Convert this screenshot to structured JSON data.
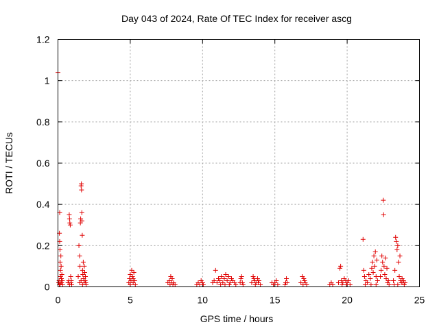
{
  "chart_data": {
    "type": "scatter",
    "title": "Day 043 of 2024, Rate Of TEC Index for receiver ascg",
    "xlabel": "GPS time / hours",
    "ylabel": "ROTI / TECUs",
    "xlim": [
      0,
      25
    ],
    "ylim": [
      0,
      1.2
    ],
    "xticks": [
      0,
      5,
      10,
      15,
      20,
      25
    ],
    "xtick_labels": [
      "0",
      "5",
      "10",
      "15",
      "20",
      "25"
    ],
    "yticks": [
      0,
      0.2,
      0.4,
      0.6,
      0.8,
      1,
      1.2
    ],
    "ytick_labels": [
      "0",
      "0.2",
      "0.4",
      "0.6",
      "0.8",
      "1",
      "1.2"
    ],
    "grid": true,
    "marker": "plus",
    "color": "#e00000",
    "series": [
      {
        "name": "ROTI",
        "points": [
          [
            0.0,
            1.04
          ],
          [
            0.05,
            0.02
          ],
          [
            0.08,
            0.03
          ],
          [
            0.1,
            0.26
          ],
          [
            0.12,
            0.22
          ],
          [
            0.12,
            0.36
          ],
          [
            0.14,
            0.18
          ],
          [
            0.15,
            0.12
          ],
          [
            0.17,
            0.08
          ],
          [
            0.18,
            0.05
          ],
          [
            0.2,
            0.15
          ],
          [
            0.22,
            0.1
          ],
          [
            0.24,
            0.04
          ],
          [
            0.25,
            0.02
          ],
          [
            0.27,
            0.06
          ],
          [
            0.3,
            0.03
          ],
          [
            0.32,
            0.01
          ],
          [
            0.15,
            0.01
          ],
          [
            0.2,
            0.02
          ],
          [
            0.1,
            0.01
          ],
          [
            0.7,
            0.02
          ],
          [
            0.75,
            0.03
          ],
          [
            0.78,
            0.35
          ],
          [
            0.8,
            0.33
          ],
          [
            0.82,
            0.31
          ],
          [
            0.85,
            0.3
          ],
          [
            0.88,
            0.05
          ],
          [
            0.9,
            0.02
          ],
          [
            0.92,
            0.03
          ],
          [
            0.95,
            0.01
          ],
          [
            0.8,
            0.01
          ],
          [
            1.4,
            0.05
          ],
          [
            1.45,
            0.2
          ],
          [
            1.5,
            0.15
          ],
          [
            1.52,
            0.1
          ],
          [
            1.55,
            0.31
          ],
          [
            1.57,
            0.33
          ],
          [
            1.6,
            0.49
          ],
          [
            1.62,
            0.5
          ],
          [
            1.63,
            0.47
          ],
          [
            1.65,
            0.36
          ],
          [
            1.66,
            0.32
          ],
          [
            1.68,
            0.25
          ],
          [
            1.7,
            0.08
          ],
          [
            1.72,
            0.06
          ],
          [
            1.75,
            0.12
          ],
          [
            1.78,
            0.04
          ],
          [
            1.8,
            0.02
          ],
          [
            1.82,
            0.1
          ],
          [
            1.85,
            0.07
          ],
          [
            1.88,
            0.03
          ],
          [
            1.9,
            0.05
          ],
          [
            1.92,
            0.02
          ],
          [
            1.95,
            0.01
          ],
          [
            1.5,
            0.02
          ],
          [
            1.6,
            0.03
          ],
          [
            1.7,
            0.01
          ],
          [
            4.9,
            0.02
          ],
          [
            4.95,
            0.04
          ],
          [
            5.0,
            0.06
          ],
          [
            5.05,
            0.03
          ],
          [
            5.1,
            0.08
          ],
          [
            5.15,
            0.05
          ],
          [
            5.2,
            0.02
          ],
          [
            5.25,
            0.07
          ],
          [
            5.3,
            0.03
          ],
          [
            5.35,
            0.01
          ],
          [
            5.0,
            0.01
          ],
          [
            5.2,
            0.04
          ],
          [
            7.6,
            0.02
          ],
          [
            7.7,
            0.03
          ],
          [
            7.8,
            0.05
          ],
          [
            7.85,
            0.02
          ],
          [
            7.9,
            0.04
          ],
          [
            7.95,
            0.01
          ],
          [
            8.0,
            0.02
          ],
          [
            8.1,
            0.01
          ],
          [
            7.75,
            0.01
          ],
          [
            9.6,
            0.01
          ],
          [
            9.7,
            0.02
          ],
          [
            9.8,
            0.01
          ],
          [
            9.9,
            0.03
          ],
          [
            10.0,
            0.02
          ],
          [
            10.05,
            0.01
          ],
          [
            10.7,
            0.02
          ],
          [
            10.8,
            0.03
          ],
          [
            10.9,
            0.08
          ],
          [
            11.0,
            0.02
          ],
          [
            11.1,
            0.04
          ],
          [
            11.2,
            0.03
          ],
          [
            11.3,
            0.05
          ],
          [
            11.4,
            0.02
          ],
          [
            11.5,
            0.04
          ],
          [
            11.6,
            0.06
          ],
          [
            11.7,
            0.03
          ],
          [
            11.8,
            0.05
          ],
          [
            11.9,
            0.02
          ],
          [
            12.0,
            0.04
          ],
          [
            12.1,
            0.03
          ],
          [
            12.2,
            0.02
          ],
          [
            12.3,
            0.01
          ],
          [
            11.25,
            0.01
          ],
          [
            11.55,
            0.01
          ],
          [
            11.85,
            0.01
          ],
          [
            12.6,
            0.02
          ],
          [
            12.65,
            0.04
          ],
          [
            12.7,
            0.05
          ],
          [
            12.75,
            0.02
          ],
          [
            12.8,
            0.01
          ],
          [
            13.4,
            0.02
          ],
          [
            13.5,
            0.05
          ],
          [
            13.55,
            0.04
          ],
          [
            13.6,
            0.03
          ],
          [
            13.7,
            0.02
          ],
          [
            13.8,
            0.04
          ],
          [
            13.85,
            0.02
          ],
          [
            13.9,
            0.03
          ],
          [
            14.0,
            0.01
          ],
          [
            13.65,
            0.01
          ],
          [
            14.8,
            0.02
          ],
          [
            14.9,
            0.01
          ],
          [
            15.0,
            0.02
          ],
          [
            15.1,
            0.03
          ],
          [
            15.2,
            0.01
          ],
          [
            15.7,
            0.01
          ],
          [
            15.75,
            0.02
          ],
          [
            15.8,
            0.04
          ],
          [
            15.85,
            0.02
          ],
          [
            16.8,
            0.02
          ],
          [
            16.9,
            0.05
          ],
          [
            17.0,
            0.04
          ],
          [
            17.05,
            0.03
          ],
          [
            17.1,
            0.02
          ],
          [
            17.2,
            0.01
          ],
          [
            16.95,
            0.01
          ],
          [
            18.8,
            0.01
          ],
          [
            18.9,
            0.02
          ],
          [
            19.0,
            0.01
          ],
          [
            19.4,
            0.02
          ],
          [
            19.5,
            0.09
          ],
          [
            19.55,
            0.1
          ],
          [
            19.6,
            0.03
          ],
          [
            19.7,
            0.02
          ],
          [
            19.8,
            0.04
          ],
          [
            19.9,
            0.03
          ],
          [
            20.0,
            0.02
          ],
          [
            20.1,
            0.03
          ],
          [
            20.2,
            0.01
          ],
          [
            19.65,
            0.01
          ],
          [
            19.95,
            0.01
          ],
          [
            21.1,
            0.23
          ],
          [
            21.15,
            0.08
          ],
          [
            21.2,
            0.05
          ],
          [
            21.3,
            0.03
          ],
          [
            21.4,
            0.02
          ],
          [
            21.5,
            0.06
          ],
          [
            21.6,
            0.04
          ],
          [
            21.7,
            0.09
          ],
          [
            21.75,
            0.12
          ],
          [
            21.8,
            0.07
          ],
          [
            21.85,
            0.15
          ],
          [
            21.9,
            0.1
          ],
          [
            21.95,
            0.17
          ],
          [
            22.0,
            0.05
          ],
          [
            22.05,
            0.13
          ],
          [
            22.1,
            0.03
          ],
          [
            21.25,
            0.01
          ],
          [
            21.65,
            0.01
          ],
          [
            22.0,
            0.01
          ],
          [
            22.3,
            0.05
          ],
          [
            22.35,
            0.08
          ],
          [
            22.4,
            0.15
          ],
          [
            22.45,
            0.12
          ],
          [
            22.5,
            0.42
          ],
          [
            22.52,
            0.35
          ],
          [
            22.55,
            0.1
          ],
          [
            22.6,
            0.06
          ],
          [
            22.65,
            0.14
          ],
          [
            22.7,
            0.04
          ],
          [
            22.75,
            0.09
          ],
          [
            22.8,
            0.02
          ],
          [
            22.85,
            0.03
          ],
          [
            22.9,
            0.01
          ],
          [
            23.2,
            0.03
          ],
          [
            23.3,
            0.08
          ],
          [
            23.35,
            0.24
          ],
          [
            23.4,
            0.22
          ],
          [
            23.45,
            0.18
          ],
          [
            23.5,
            0.2
          ],
          [
            23.55,
            0.12
          ],
          [
            23.6,
            0.05
          ],
          [
            23.65,
            0.15
          ],
          [
            23.7,
            0.03
          ],
          [
            23.75,
            0.02
          ],
          [
            23.8,
            0.04
          ],
          [
            23.85,
            0.02
          ],
          [
            23.9,
            0.03
          ],
          [
            23.95,
            0.01
          ],
          [
            24.0,
            0.02
          ],
          [
            23.5,
            0.01
          ],
          [
            23.25,
            0.01
          ]
        ]
      }
    ]
  }
}
